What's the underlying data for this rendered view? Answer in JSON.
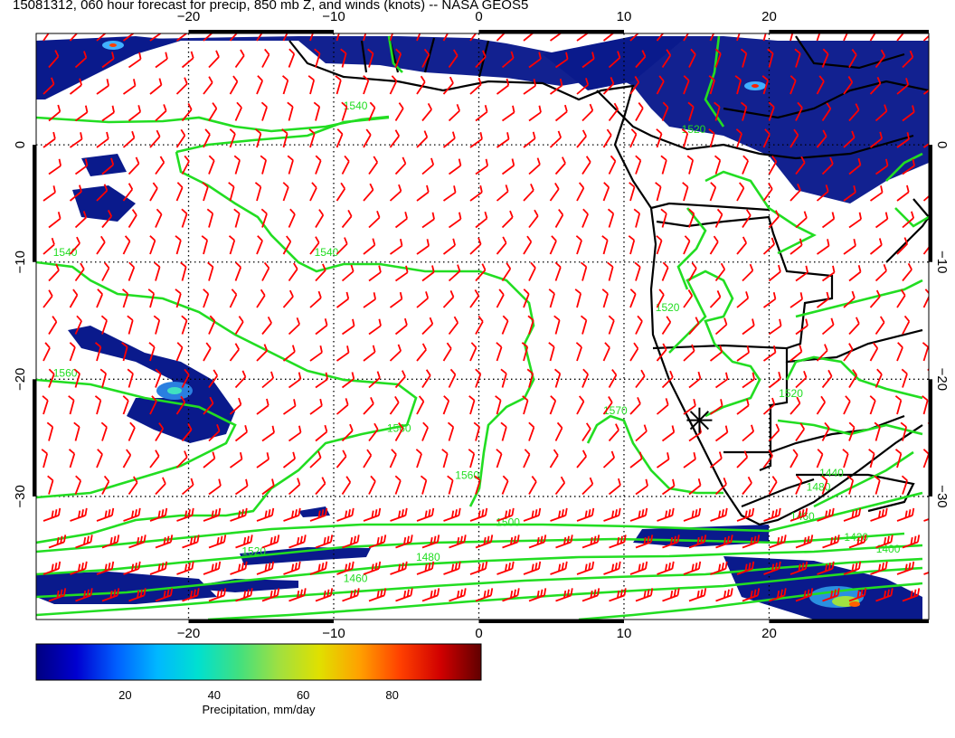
{
  "title": "15081312, 060 hour forecast for precip, 850 mb Z, and winds (knots) -- NASA GEOS5",
  "map": {
    "lon_ticks": [
      -20,
      -10,
      0,
      10,
      20
    ],
    "lon_labels": [
      "−20",
      "−10",
      "0",
      "10",
      "20"
    ],
    "lat_ticks": [
      0,
      -10,
      -20,
      -30
    ],
    "lat_labels": [
      "0",
      "−10",
      "−20",
      "−30"
    ],
    "lon_range": [
      -30.5,
      31.0
    ],
    "lat_range": [
      9.5,
      -40.5
    ],
    "grid": "dotted",
    "marker": {
      "lon": 15.2,
      "lat": -23.5,
      "symbol": "asterisk"
    },
    "contour_labels": [
      {
        "text": "1540",
        "lon": -8.5,
        "lat": 3.0
      },
      {
        "text": "1540",
        "lon": -10.5,
        "lat": -9.5
      },
      {
        "text": "1520",
        "lon": 14.8,
        "lat": 1.0
      },
      {
        "text": "1520",
        "lon": 13.0,
        "lat": -14.2
      },
      {
        "text": "1520",
        "lon": 21.5,
        "lat": -21.5
      },
      {
        "text": "1540",
        "lon": -28.5,
        "lat": -9.5
      },
      {
        "text": "1560",
        "lon": -28.5,
        "lat": -19.8
      },
      {
        "text": "1560",
        "lon": -5.5,
        "lat": -24.5
      },
      {
        "text": "1560",
        "lon": -0.8,
        "lat": -28.5
      },
      {
        "text": "1570",
        "lon": 9.4,
        "lat": -23.0
      },
      {
        "text": "1500",
        "lon": 2.0,
        "lat": -32.5
      },
      {
        "text": "1480",
        "lon": -3.5,
        "lat": -35.5
      },
      {
        "text": "1460",
        "lon": -8.5,
        "lat": -37.3
      },
      {
        "text": "1520",
        "lon": -15.5,
        "lat": -35.0
      },
      {
        "text": "1460",
        "lon": 22.3,
        "lat": -32.0
      },
      {
        "text": "1440",
        "lon": 24.3,
        "lat": -28.3
      },
      {
        "text": "1480",
        "lon": 23.4,
        "lat": -29.5
      },
      {
        "text": "1420",
        "lon": 26.0,
        "lat": -33.8
      },
      {
        "text": "1400",
        "lon": 28.2,
        "lat": -34.8
      }
    ]
  },
  "colorbar": {
    "label": "Precipitation, mm/day",
    "tick_values": [
      20,
      40,
      60,
      80
    ],
    "tick_labels": [
      "20",
      "40",
      "60",
      "80"
    ],
    "range": [
      0,
      100
    ],
    "colors": [
      "#000080",
      "#0000d0",
      "#0060ff",
      "#00b8ff",
      "#00e0d0",
      "#40e080",
      "#a0e040",
      "#e0e000",
      "#ffa000",
      "#ff4000",
      "#d00000",
      "#600000"
    ]
  },
  "colors": {
    "contour": "#22dd22",
    "barb": "#ff0000",
    "precip_fill": "#0a1a8c",
    "coast": "#000000"
  }
}
